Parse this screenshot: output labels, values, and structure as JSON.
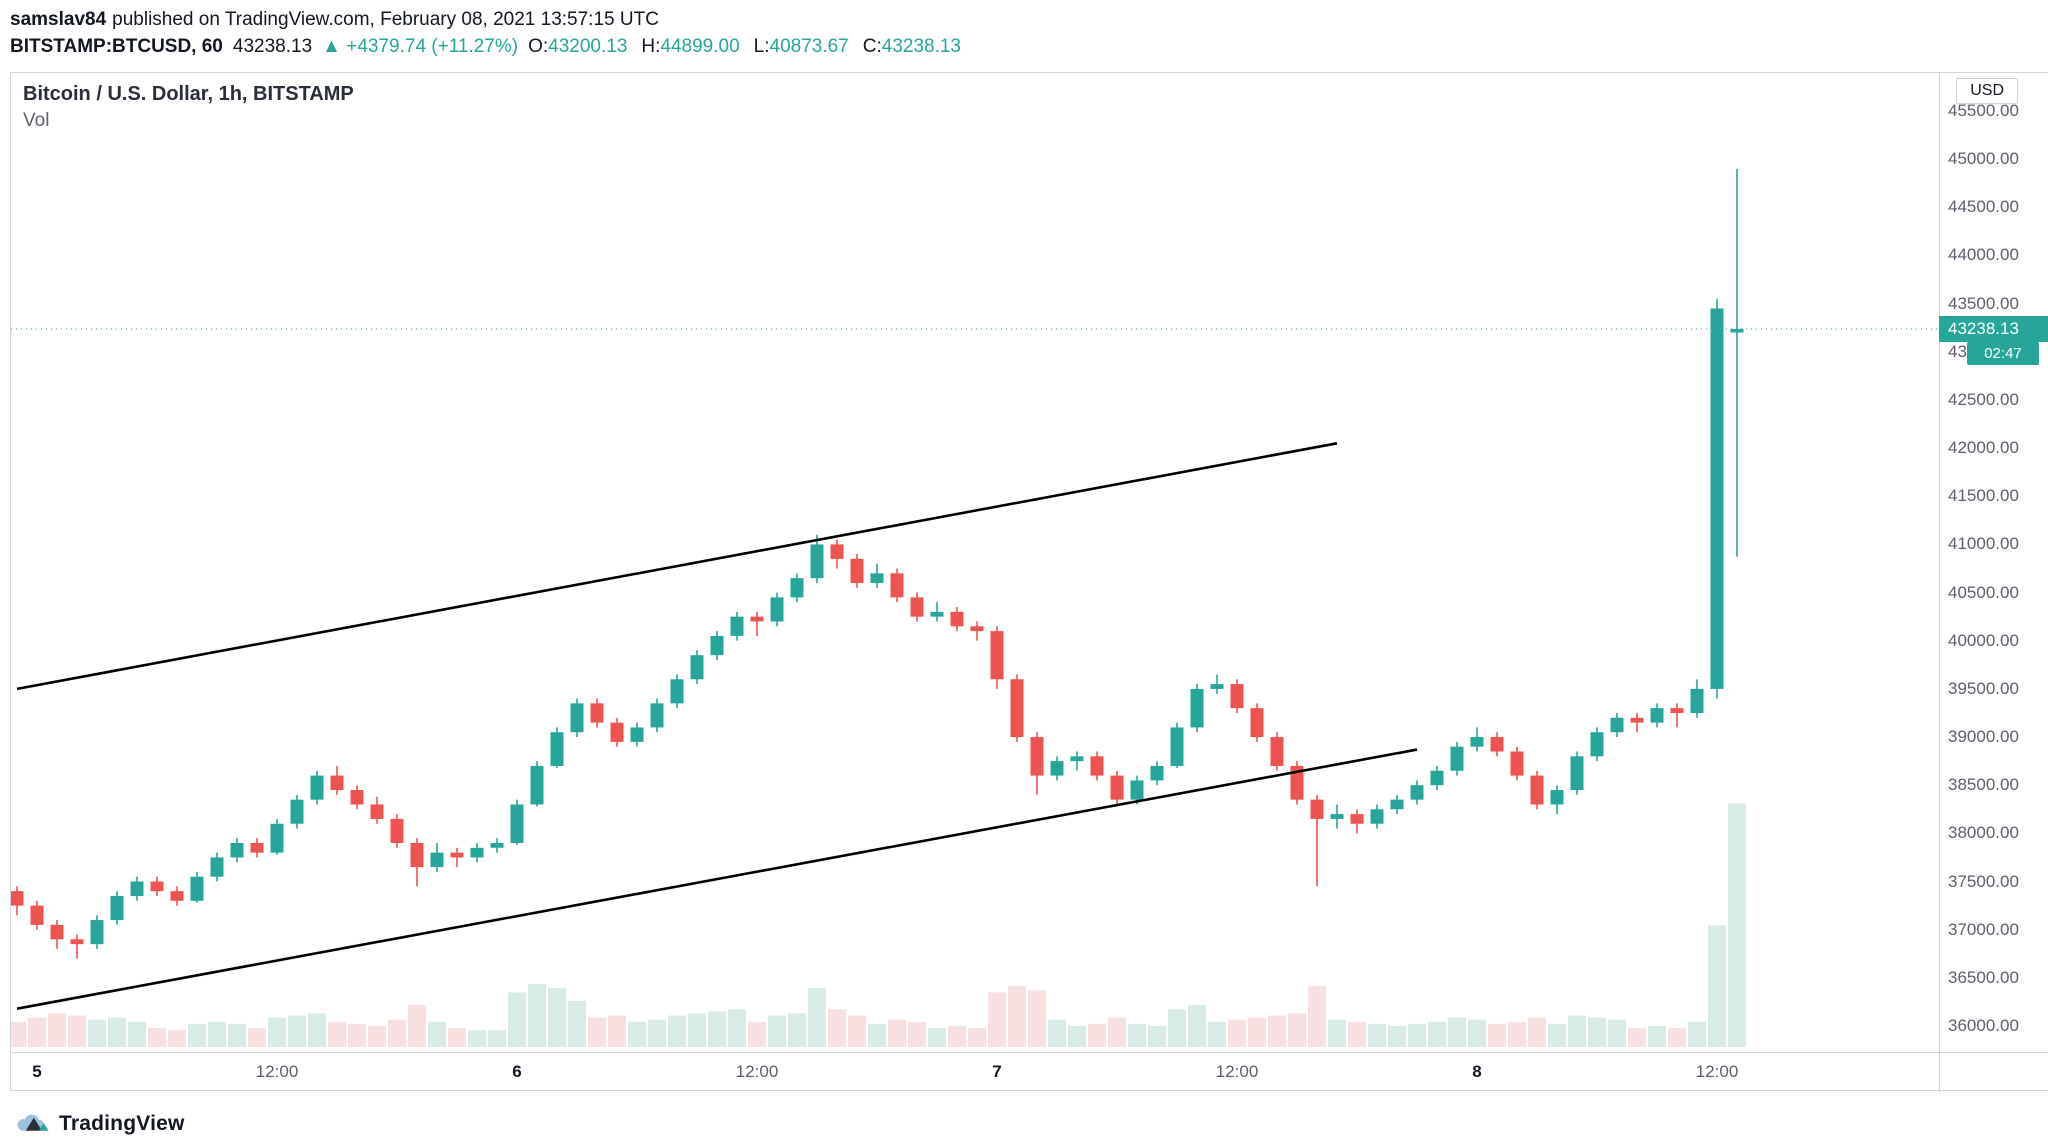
{
  "header": {
    "author": "samslav84",
    "published_text": "published on TradingView.com, February 08, 2021 13:57:15 UTC",
    "symbol": "BITSTAMP:BTCUSD, 60",
    "last_price": "43238.13",
    "change_arrow": "▲",
    "change_text": "+4379.74 (+11.27%)",
    "ohlc": [
      {
        "label": "O:",
        "value": "43200.13"
      },
      {
        "label": "H:",
        "value": "44899.00"
      },
      {
        "label": "L:",
        "value": "40873.67"
      },
      {
        "label": "C:",
        "value": "43238.13"
      }
    ]
  },
  "chart": {
    "legend_title": "Bitcoin / U.S. Dollar, 1h, BITSTAMP",
    "legend_vol": "Vol",
    "currency_button": "USD",
    "price_badge": "43238.13",
    "countdown_badge": "02:47",
    "footer_logo_text": "TradingView"
  },
  "chart_data": {
    "type": "candlestick",
    "title": "Bitcoin / U.S. Dollar, 1h, BITSTAMP",
    "symbol": "BITSTAMP:BTCUSD",
    "interval": "1h",
    "last_price": 43238.13,
    "price_axis": {
      "min": 36000,
      "max": 45500,
      "tick_step": 500,
      "format_decimals": 2
    },
    "time_ticks": [
      {
        "index": 1,
        "label": "5",
        "major": true
      },
      {
        "index": 13,
        "label": "12:00",
        "major": false
      },
      {
        "index": 25,
        "label": "6",
        "major": true
      },
      {
        "index": 37,
        "label": "12:00",
        "major": false
      },
      {
        "index": 49,
        "label": "7",
        "major": true
      },
      {
        "index": 61,
        "label": "12:00",
        "major": false
      },
      {
        "index": 73,
        "label": "8",
        "major": true
      },
      {
        "index": 85,
        "label": "12:00",
        "major": false
      }
    ],
    "candles_format": [
      "open",
      "high",
      "low",
      "close",
      "volume"
    ],
    "candles": [
      [
        37400,
        37450,
        37150,
        37250,
        60
      ],
      [
        37250,
        37300,
        37000,
        37050,
        70
      ],
      [
        37050,
        37100,
        36800,
        36900,
        80
      ],
      [
        36900,
        36950,
        36700,
        36850,
        75
      ],
      [
        36850,
        37150,
        36800,
        37100,
        65
      ],
      [
        37100,
        37400,
        37050,
        37350,
        70
      ],
      [
        37350,
        37550,
        37300,
        37500,
        60
      ],
      [
        37500,
        37550,
        37350,
        37400,
        45
      ],
      [
        37400,
        37450,
        37250,
        37300,
        40
      ],
      [
        37300,
        37600,
        37280,
        37550,
        55
      ],
      [
        37550,
        37800,
        37500,
        37750,
        60
      ],
      [
        37750,
        37950,
        37700,
        37900,
        55
      ],
      [
        37900,
        37950,
        37750,
        37800,
        45
      ],
      [
        37800,
        38150,
        37780,
        38100,
        70
      ],
      [
        38100,
        38400,
        38050,
        38350,
        75
      ],
      [
        38350,
        38650,
        38300,
        38600,
        80
      ],
      [
        38600,
        38700,
        38400,
        38450,
        60
      ],
      [
        38450,
        38500,
        38250,
        38300,
        55
      ],
      [
        38300,
        38380,
        38100,
        38150,
        50
      ],
      [
        38150,
        38200,
        37850,
        37900,
        65
      ],
      [
        37900,
        37950,
        37450,
        37650,
        100
      ],
      [
        37650,
        37900,
        37600,
        37800,
        60
      ],
      [
        37800,
        37850,
        37650,
        37750,
        45
      ],
      [
        37750,
        37900,
        37700,
        37850,
        40
      ],
      [
        37850,
        37950,
        37800,
        37900,
        40
      ],
      [
        37900,
        38350,
        37880,
        38300,
        130
      ],
      [
        38300,
        38750,
        38280,
        38700,
        150
      ],
      [
        38700,
        39100,
        38680,
        39050,
        140
      ],
      [
        39050,
        39400,
        39000,
        39350,
        110
      ],
      [
        39350,
        39400,
        39100,
        39150,
        70
      ],
      [
        39150,
        39200,
        38900,
        38950,
        75
      ],
      [
        38950,
        39150,
        38900,
        39100,
        60
      ],
      [
        39100,
        39400,
        39050,
        39350,
        65
      ],
      [
        39350,
        39650,
        39300,
        39600,
        75
      ],
      [
        39600,
        39900,
        39550,
        39850,
        80
      ],
      [
        39850,
        40100,
        39800,
        40050,
        85
      ],
      [
        40050,
        40300,
        40000,
        40250,
        90
      ],
      [
        40250,
        40300,
        40050,
        40200,
        60
      ],
      [
        40200,
        40500,
        40150,
        40450,
        75
      ],
      [
        40450,
        40700,
        40400,
        40650,
        80
      ],
      [
        40650,
        41100,
        40600,
        41000,
        140
      ],
      [
        41000,
        41050,
        40750,
        40850,
        90
      ],
      [
        40850,
        40900,
        40550,
        40600,
        75
      ],
      [
        40600,
        40800,
        40550,
        40700,
        55
      ],
      [
        40700,
        40750,
        40400,
        40450,
        65
      ],
      [
        40450,
        40500,
        40200,
        40250,
        60
      ],
      [
        40250,
        40400,
        40200,
        40300,
        45
      ],
      [
        40300,
        40350,
        40100,
        40150,
        50
      ],
      [
        40150,
        40200,
        40000,
        40100,
        45
      ],
      [
        40100,
        40150,
        39500,
        39600,
        130
      ],
      [
        39600,
        39650,
        38950,
        39000,
        145
      ],
      [
        39000,
        39050,
        38400,
        38600,
        135
      ],
      [
        38600,
        38800,
        38550,
        38750,
        65
      ],
      [
        38750,
        38850,
        38650,
        38800,
        50
      ],
      [
        38800,
        38850,
        38550,
        38600,
        55
      ],
      [
        38600,
        38650,
        38300,
        38350,
        70
      ],
      [
        38350,
        38600,
        38300,
        38550,
        55
      ],
      [
        38550,
        38750,
        38500,
        38700,
        50
      ],
      [
        38700,
        39150,
        38680,
        39100,
        90
      ],
      [
        39100,
        39550,
        39050,
        39500,
        100
      ],
      [
        39500,
        39650,
        39450,
        39550,
        60
      ],
      [
        39550,
        39600,
        39250,
        39300,
        65
      ],
      [
        39300,
        39350,
        38950,
        39000,
        70
      ],
      [
        39000,
        39050,
        38650,
        38700,
        75
      ],
      [
        38700,
        38750,
        38300,
        38350,
        80
      ],
      [
        38350,
        38400,
        37450,
        38150,
        145
      ],
      [
        38150,
        38300,
        38050,
        38200,
        65
      ],
      [
        38200,
        38250,
        38000,
        38100,
        60
      ],
      [
        38100,
        38300,
        38050,
        38250,
        55
      ],
      [
        38250,
        38400,
        38200,
        38350,
        50
      ],
      [
        38350,
        38550,
        38300,
        38500,
        55
      ],
      [
        38500,
        38700,
        38450,
        38650,
        60
      ],
      [
        38650,
        38950,
        38600,
        38900,
        70
      ],
      [
        38900,
        39100,
        38850,
        39000,
        65
      ],
      [
        39000,
        39050,
        38800,
        38850,
        55
      ],
      [
        38850,
        38900,
        38550,
        38600,
        60
      ],
      [
        38600,
        38650,
        38250,
        38300,
        70
      ],
      [
        38300,
        38500,
        38200,
        38450,
        55
      ],
      [
        38450,
        38850,
        38400,
        38800,
        75
      ],
      [
        38800,
        39100,
        38750,
        39050,
        70
      ],
      [
        39050,
        39250,
        39000,
        39200,
        65
      ],
      [
        39200,
        39250,
        39050,
        39150,
        45
      ],
      [
        39150,
        39350,
        39100,
        39300,
        50
      ],
      [
        39300,
        39350,
        39100,
        39250,
        45
      ],
      [
        39250,
        39600,
        39200,
        39500,
        60
      ],
      [
        39500,
        43550,
        39400,
        43450,
        290
      ],
      [
        43200.13,
        44899.0,
        40873.67,
        43238.13,
        580
      ]
    ],
    "trendlines": [
      {
        "i1": 0,
        "p1": 39500,
        "i2": 66,
        "p2": 42050
      },
      {
        "i1": 0,
        "p1": 36180,
        "i2": 70,
        "p2": 38870
      }
    ],
    "colors": {
      "up": "#26a69a",
      "down": "#ef5350",
      "vol_up": "#d8ece7",
      "vol_down": "#f9e0e0",
      "trendline": "#000000",
      "last_price_line": "#26a69a",
      "badge_bg": "#26a69a"
    },
    "layout": {
      "grid": false,
      "legend_position": "top-left",
      "price_axis_side": "right"
    }
  }
}
